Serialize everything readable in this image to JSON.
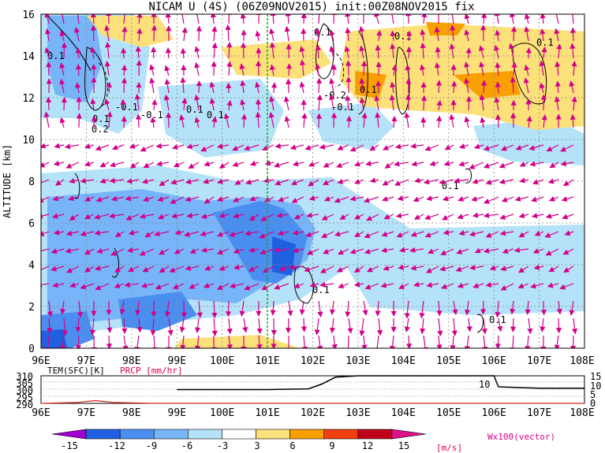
{
  "title": "NICAM U (4S) (06Z09NOV2015) init:00Z08NOV2015 fix",
  "main_chart": {
    "ylabel": "ALTITUDE [km]",
    "x_ticks": [
      "96E",
      "97E",
      "98E",
      "99E",
      "100E",
      "101E",
      "102E",
      "103E",
      "104E",
      "105E",
      "106E",
      "107E",
      "108E"
    ],
    "y_ticks": [
      "0",
      "2",
      "4",
      "6",
      "8",
      "10",
      "12",
      "14",
      "16"
    ],
    "contour_labels": [
      "0.1",
      "0.1",
      "0.2",
      "-0.1",
      "-0.1",
      "0.1",
      "0.1",
      "0.1",
      "0.1",
      "0.1",
      "-0.2",
      "0.1",
      "-0.1",
      "0.1",
      "0.1",
      "0.1"
    ]
  },
  "bottom_panel": {
    "tem_label": "TEM(SFC)[K]",
    "prcp_label": "PRCP [mm/hr]",
    "left_ticks": [
      "310",
      "305",
      "300",
      "295",
      "290"
    ],
    "right_ticks": [
      "15",
      "10",
      "5",
      "0"
    ],
    "marker_label": "10",
    "x_ticks": [
      "96E",
      "97E",
      "98E",
      "99E",
      "100E",
      "101E",
      "102E",
      "103E",
      "104E",
      "105E",
      "106E",
      "107E",
      "108E"
    ]
  },
  "colorbar": {
    "labels": [
      "-15",
      "-12",
      "-9",
      "-6",
      "-3",
      "3",
      "6",
      "9",
      "12",
      "15"
    ],
    "unit": "[m/s]",
    "colors": [
      "#a000d0",
      "#2060e0",
      "#4a8ef0",
      "#78b4f8",
      "#b4e2f8",
      "#ffffff",
      "#fce07a",
      "#f8a000",
      "#f04010",
      "#c00018",
      "#e0108a"
    ]
  },
  "vector_label": "Wx100(vector)",
  "chart_data": {
    "type": "heatmap",
    "title": "NICAM U (4S) (06Z09NOV2015) init:00Z08NOV2015 fix",
    "xlabel": "",
    "ylabel": "ALTITUDE [km]",
    "xlim": [
      96,
      108
    ],
    "ylim": [
      0,
      16
    ],
    "x_axis": "longitude (E)",
    "fill_levels": [
      -15,
      -12,
      -9,
      -6,
      -3,
      3,
      6,
      9,
      12,
      15
    ],
    "fill_unit": "m/s",
    "vertical_line_x": 101,
    "vector_label": "Wx100(vector)",
    "bottom_panel": {
      "tem_range": [
        290,
        310
      ],
      "prcp_range": [
        0,
        15
      ],
      "tem_series": [
        {
          "x": 99.0,
          "y": 300
        },
        {
          "x": 100.0,
          "y": 300
        },
        {
          "x": 101.0,
          "y": 300
        },
        {
          "x": 101.9,
          "y": 300.5
        },
        {
          "x": 102.2,
          "y": 304
        },
        {
          "x": 102.5,
          "y": 309
        },
        {
          "x": 103.0,
          "y": 310
        },
        {
          "x": 104.0,
          "y": 310
        },
        {
          "x": 105.0,
          "y": 310
        },
        {
          "x": 106.0,
          "y": 310
        },
        {
          "x": 106.1,
          "y": 302
        },
        {
          "x": 107.0,
          "y": 301
        },
        {
          "x": 108.0,
          "y": 301
        }
      ],
      "prcp_series": [
        {
          "x": 96.0,
          "y": 0
        },
        {
          "x": 96.8,
          "y": 0.5
        },
        {
          "x": 97.2,
          "y": 1.5
        },
        {
          "x": 97.6,
          "y": 0.5
        },
        {
          "x": 98.5,
          "y": 0
        },
        {
          "x": 108.0,
          "y": 0
        }
      ]
    }
  }
}
